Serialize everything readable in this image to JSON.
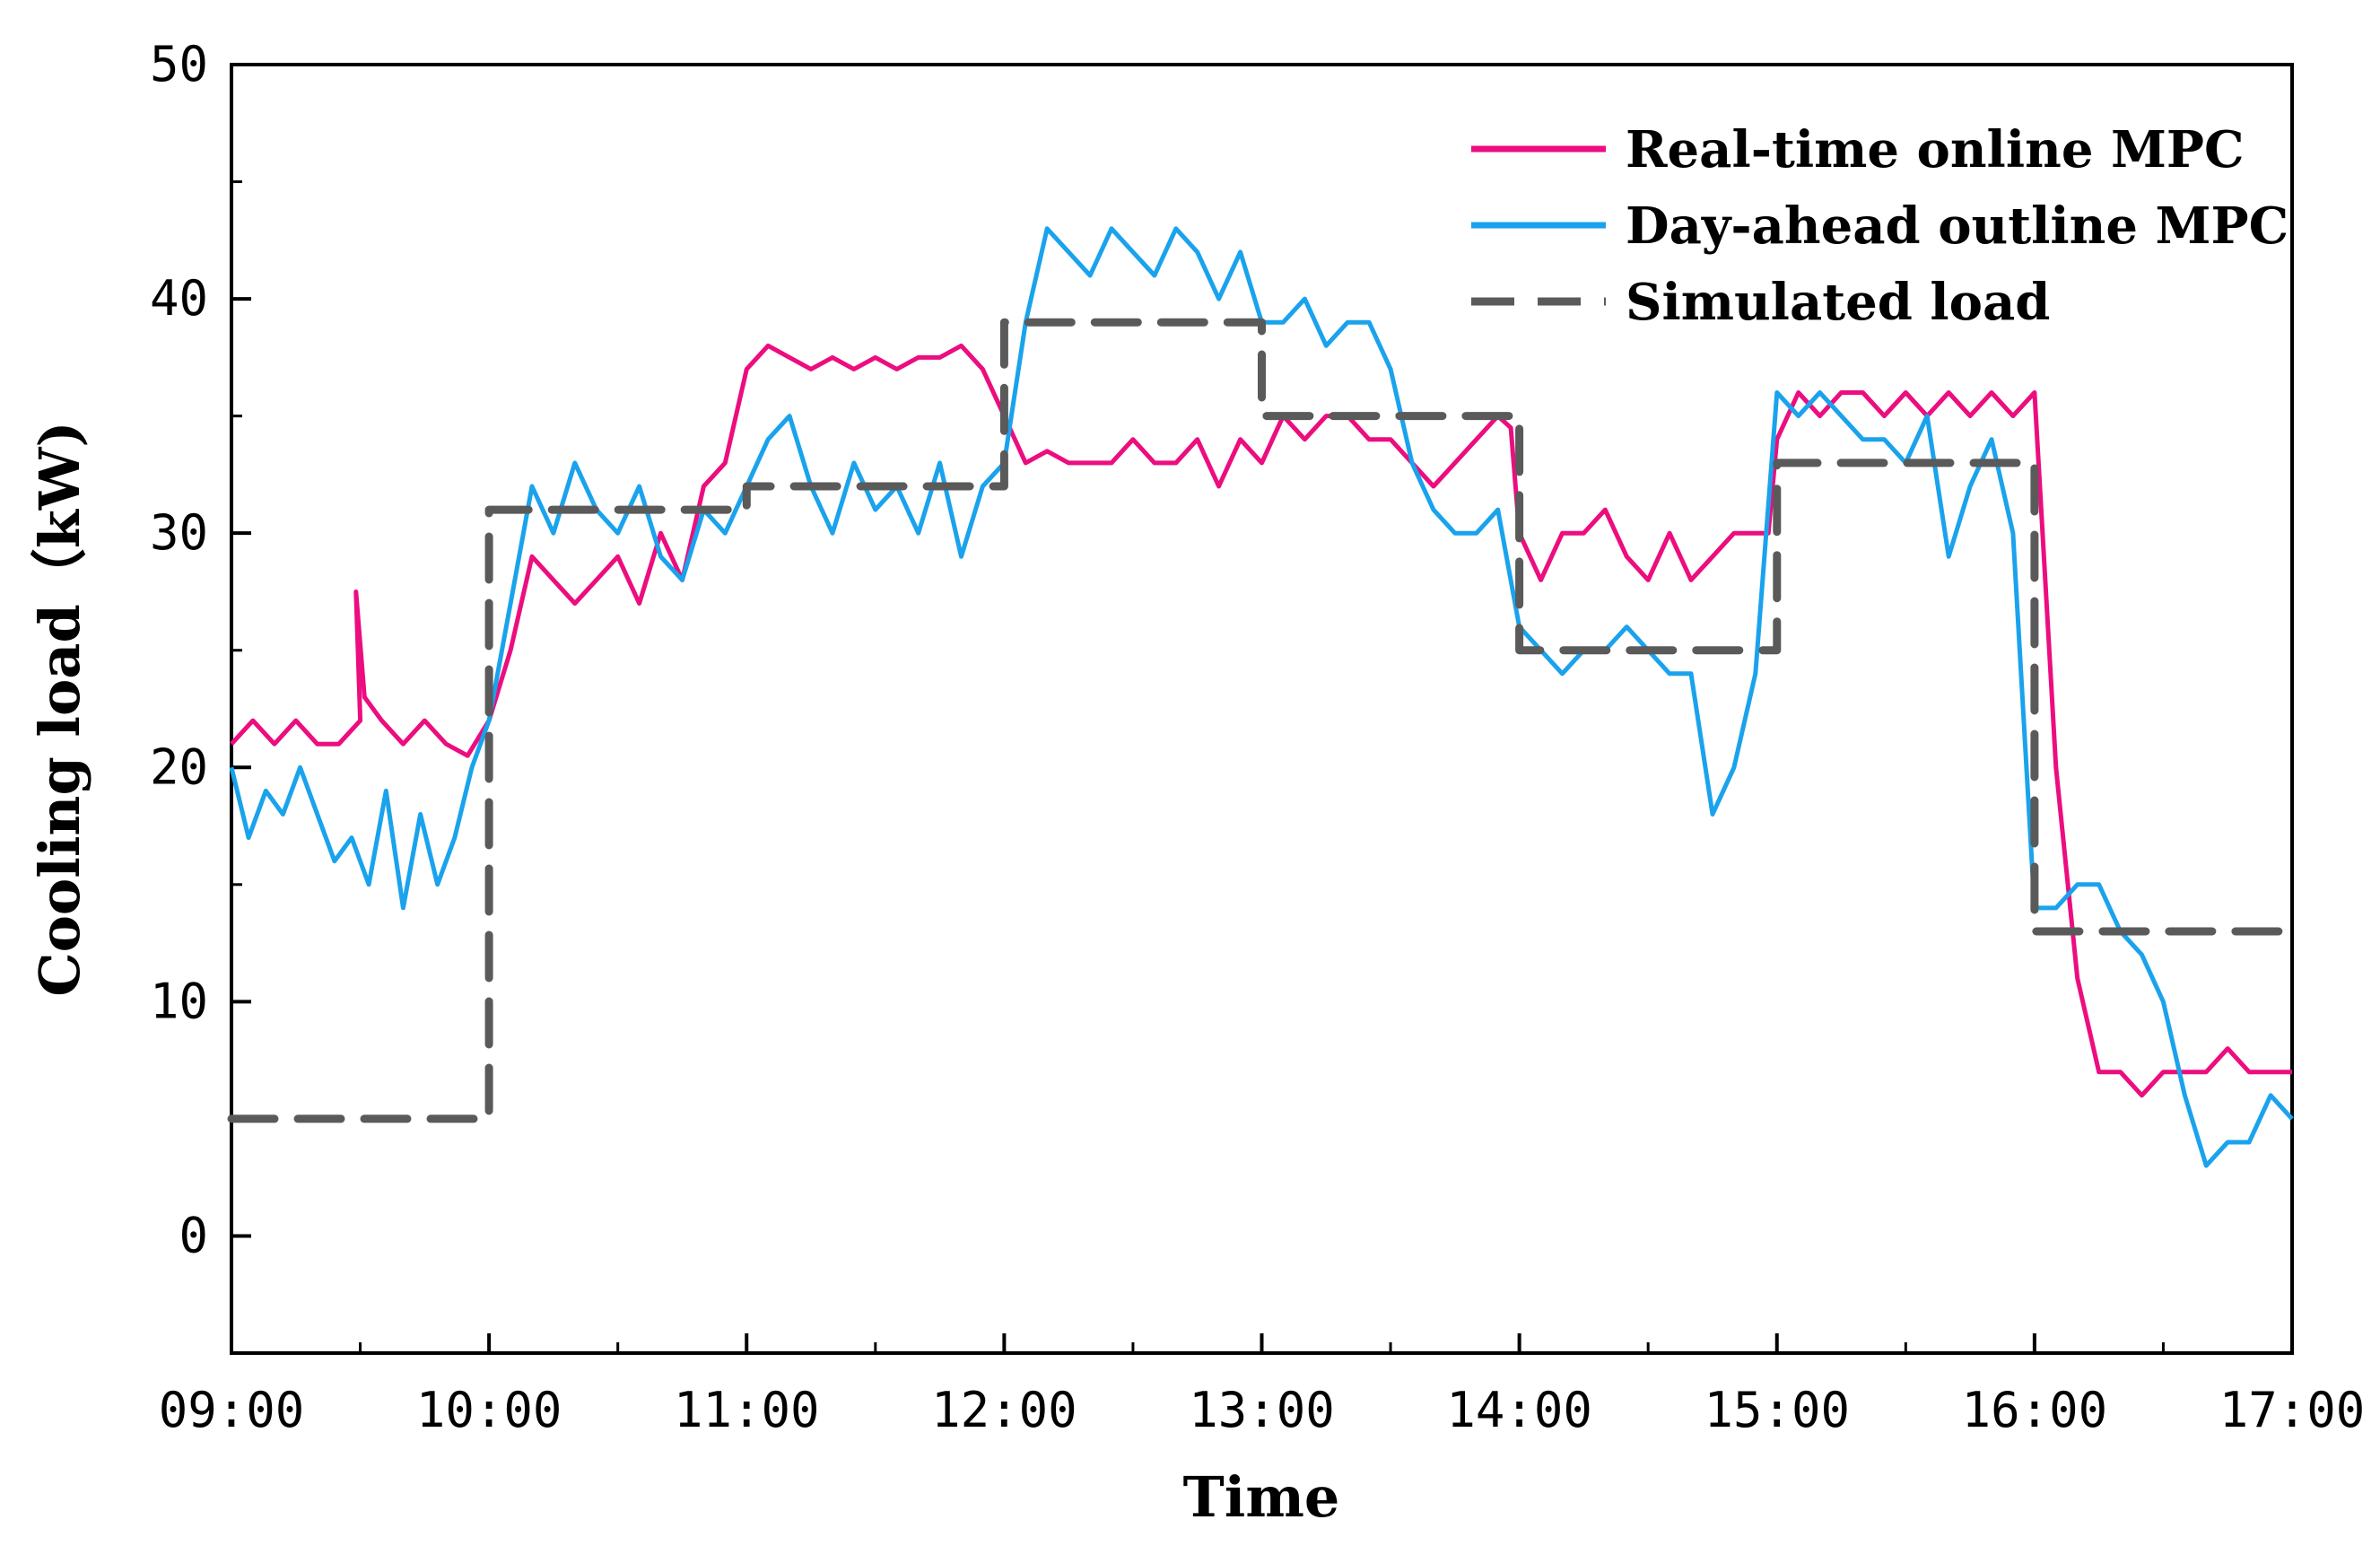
{
  "chart_data": {
    "type": "line",
    "title": "",
    "xlabel": "Time",
    "ylabel": "Cooling load（kW)",
    "xlim": [
      0,
      480
    ],
    "ylim": [
      -5,
      50
    ],
    "x_ticks": [
      {
        "x": 0,
        "label": "09:00"
      },
      {
        "x": 60,
        "label": "10:00"
      },
      {
        "x": 120,
        "label": "11:00"
      },
      {
        "x": 180,
        "label": "12:00"
      },
      {
        "x": 240,
        "label": "13:00"
      },
      {
        "x": 300,
        "label": "14:00"
      },
      {
        "x": 360,
        "label": "15:00"
      },
      {
        "x": 420,
        "label": "16:00"
      },
      {
        "x": 480,
        "label": "17:00"
      }
    ],
    "y_ticks": [
      {
        "y": 0,
        "label": "0"
      },
      {
        "y": 10,
        "label": "10"
      },
      {
        "y": 20,
        "label": "20"
      },
      {
        "y": 30,
        "label": "30"
      },
      {
        "y": 40,
        "label": "40"
      },
      {
        "y": 50,
        "label": "50"
      }
    ],
    "legend_position": "top-right",
    "series": [
      {
        "name": "Real-time online MPC",
        "color": "#ec0d7f",
        "style": "solid",
        "x": [
          0,
          5,
          10,
          15,
          20,
          25,
          30,
          29,
          31,
          35,
          40,
          45,
          50,
          55,
          60,
          65,
          70,
          75,
          80,
          85,
          90,
          95,
          100,
          105,
          110,
          115,
          120,
          125,
          130,
          135,
          140,
          145,
          150,
          155,
          160,
          165,
          170,
          175,
          180,
          185,
          190,
          195,
          200,
          205,
          210,
          215,
          220,
          225,
          230,
          235,
          240,
          245,
          250,
          255,
          260,
          265,
          270,
          275,
          280,
          285,
          290,
          295,
          298,
          300,
          305,
          310,
          315,
          320,
          325,
          330,
          335,
          340,
          345,
          350,
          355,
          358,
          360,
          365,
          370,
          375,
          380,
          385,
          390,
          395,
          400,
          405,
          410,
          415,
          420,
          425,
          430,
          435,
          440,
          445,
          450,
          455,
          460,
          465,
          470,
          475,
          480
        ],
        "values": [
          21,
          22,
          21,
          22,
          21,
          21,
          22,
          27.5,
          23,
          22,
          21,
          22,
          21,
          20.5,
          22,
          25,
          29,
          28,
          27,
          28,
          29,
          27,
          30,
          28,
          32,
          33,
          37,
          38,
          37.5,
          37,
          37.5,
          37,
          37.5,
          37,
          37.5,
          37.5,
          38,
          37,
          35,
          33,
          33.5,
          33,
          33,
          33,
          34,
          33,
          33,
          34,
          32,
          34,
          33,
          35,
          34,
          35,
          35,
          34,
          34,
          33,
          32,
          33,
          34,
          35,
          34.5,
          30,
          28,
          30,
          30,
          31,
          29,
          28,
          30,
          28,
          29,
          30,
          30,
          30,
          34,
          36,
          35,
          36,
          36,
          35,
          36,
          35,
          36,
          35,
          36,
          35,
          36,
          20,
          11,
          7,
          7,
          6,
          7,
          7,
          7,
          8,
          7,
          7,
          7
        ]
      },
      {
        "name": "Day-ahead outline MPC",
        "color": "#1aa3ec",
        "style": "solid",
        "x": [
          0,
          4,
          8,
          12,
          16,
          20,
          24,
          28,
          32,
          36,
          40,
          44,
          48,
          52,
          56,
          60,
          65,
          70,
          75,
          80,
          85,
          90,
          95,
          100,
          105,
          110,
          115,
          120,
          125,
          130,
          135,
          140,
          145,
          150,
          155,
          160,
          165,
          170,
          175,
          180,
          185,
          190,
          195,
          200,
          205,
          210,
          215,
          220,
          225,
          230,
          235,
          240,
          245,
          250,
          255,
          260,
          265,
          270,
          275,
          280,
          285,
          290,
          295,
          300,
          305,
          310,
          315,
          320,
          325,
          330,
          335,
          340,
          345,
          350,
          355,
          360,
          365,
          370,
          375,
          380,
          385,
          390,
          395,
          400,
          405,
          410,
          415,
          420,
          425,
          430,
          435,
          440,
          445,
          450,
          455,
          460,
          465,
          470,
          475,
          480
        ],
        "values": [
          20,
          17,
          19,
          18,
          20,
          18,
          16,
          17,
          15,
          19,
          14,
          18,
          15,
          17,
          20,
          22,
          27,
          32,
          30,
          33,
          31,
          30,
          32,
          29,
          28,
          31,
          30,
          32,
          34,
          35,
          32,
          30,
          33,
          31,
          32,
          30,
          33,
          29,
          32,
          33,
          39,
          43,
          42,
          41,
          43,
          42,
          41,
          43,
          42,
          40,
          42,
          39,
          39,
          40,
          38,
          39,
          39,
          37,
          33,
          31,
          30,
          30,
          31,
          26,
          25,
          24,
          25,
          25,
          26,
          25,
          24,
          24,
          18,
          20,
          24,
          36,
          35,
          36,
          35,
          34,
          34,
          33,
          35,
          29,
          32,
          34,
          30,
          14,
          14,
          15,
          15,
          13,
          12,
          10,
          6,
          3,
          4,
          4,
          6,
          5
        ]
      },
      {
        "name": "Simulated load",
        "color": "#5a5a5a",
        "style": "dashed",
        "x": [
          0,
          60,
          60,
          120,
          120,
          180,
          180,
          240,
          240,
          300,
          300,
          360,
          360,
          420,
          420,
          480
        ],
        "values": [
          5,
          5,
          31,
          31,
          32,
          32,
          39,
          39,
          35,
          35,
          25,
          25,
          33,
          33,
          13,
          13
        ]
      }
    ]
  }
}
